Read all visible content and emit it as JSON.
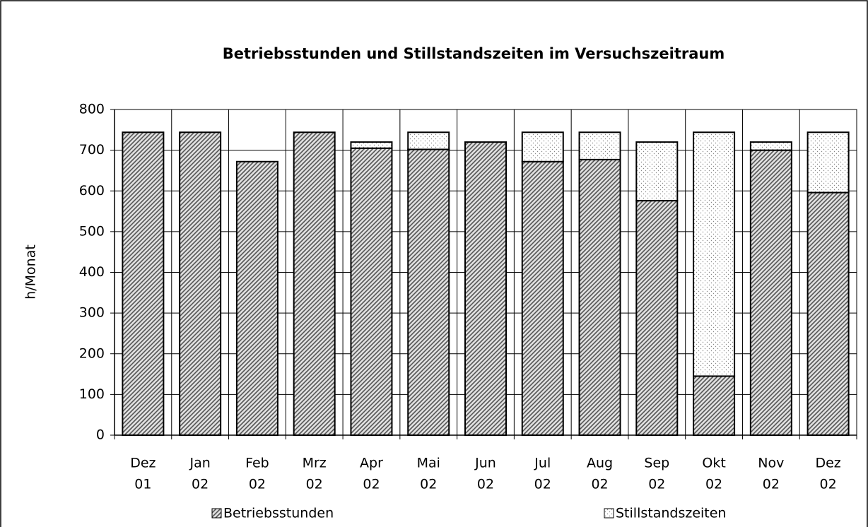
{
  "chart_data": {
    "type": "stacked_bar",
    "title": "Betriebsstunden und Stillstandszeiten im Versuchszeitraum",
    "y_label": "h/Monat",
    "categories": [
      [
        "Dez",
        "01"
      ],
      [
        "Jan",
        "02"
      ],
      [
        "Feb",
        "02"
      ],
      [
        "Mrz",
        "02"
      ],
      [
        "Apr",
        "02"
      ],
      [
        "Mai",
        "02"
      ],
      [
        "Jun",
        "02"
      ],
      [
        "Jul",
        "02"
      ],
      [
        "Aug",
        "02"
      ],
      [
        "Sep",
        "02"
      ],
      [
        "Okt",
        "02"
      ],
      [
        "Nov",
        "02"
      ],
      [
        "Dez",
        "02"
      ]
    ],
    "series": [
      {
        "name": "Betriebsstunden",
        "color": "#555555",
        "pattern": "hatch",
        "values": [
          744,
          744,
          672,
          744,
          705,
          702,
          720,
          672,
          677,
          576,
          145,
          700,
          596
        ]
      },
      {
        "name": "Stillstandszeiten",
        "color": "#888888",
        "pattern": "dots",
        "values": [
          0,
          0,
          0,
          0,
          15,
          42,
          0,
          72,
          67,
          144,
          599,
          20,
          148
        ]
      }
    ],
    "ylim": [
      0,
      800
    ],
    "yticks": [
      0,
      100,
      200,
      300,
      400,
      500,
      600,
      700,
      800
    ],
    "grid": true,
    "legend": "bottom"
  }
}
